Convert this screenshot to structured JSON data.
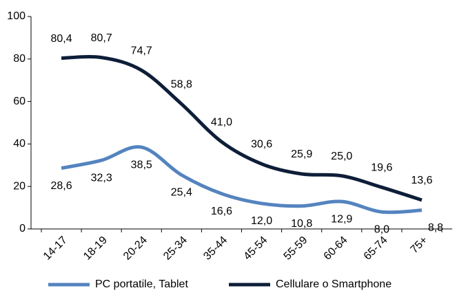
{
  "chart_data": {
    "type": "line",
    "categories": [
      "14-17",
      "18-19",
      "20-24",
      "25-34",
      "35-44",
      "45-54",
      "55-59",
      "60-64",
      "65-74",
      "75+"
    ],
    "series": [
      {
        "name": "PC portatile, Tablet",
        "color": "#5484bf",
        "values": [
          28.6,
          32.3,
          38.5,
          25.4,
          16.6,
          12.0,
          10.8,
          12.9,
          8.0,
          8.8
        ],
        "value_labels": [
          "28,6",
          "32,3",
          "38,5",
          "25,4",
          "16,6",
          "12,0",
          "10,8",
          "12,9",
          "8,0",
          "8,8"
        ]
      },
      {
        "name": "Cellulare o Smartphone",
        "color": "#0e1e38",
        "values": [
          80.4,
          80.7,
          74.7,
          58.8,
          41.0,
          30.6,
          25.9,
          25.0,
          19.6,
          13.6
        ],
        "value_labels": [
          "80,4",
          "80,7",
          "74,7",
          "58,8",
          "41,0",
          "30,6",
          "25,9",
          "25,0",
          "19,6",
          "13,6"
        ]
      }
    ],
    "ylim": [
      0,
      100
    ],
    "yticks": [
      0,
      20,
      40,
      60,
      80,
      100
    ],
    "legend": "bottom"
  }
}
